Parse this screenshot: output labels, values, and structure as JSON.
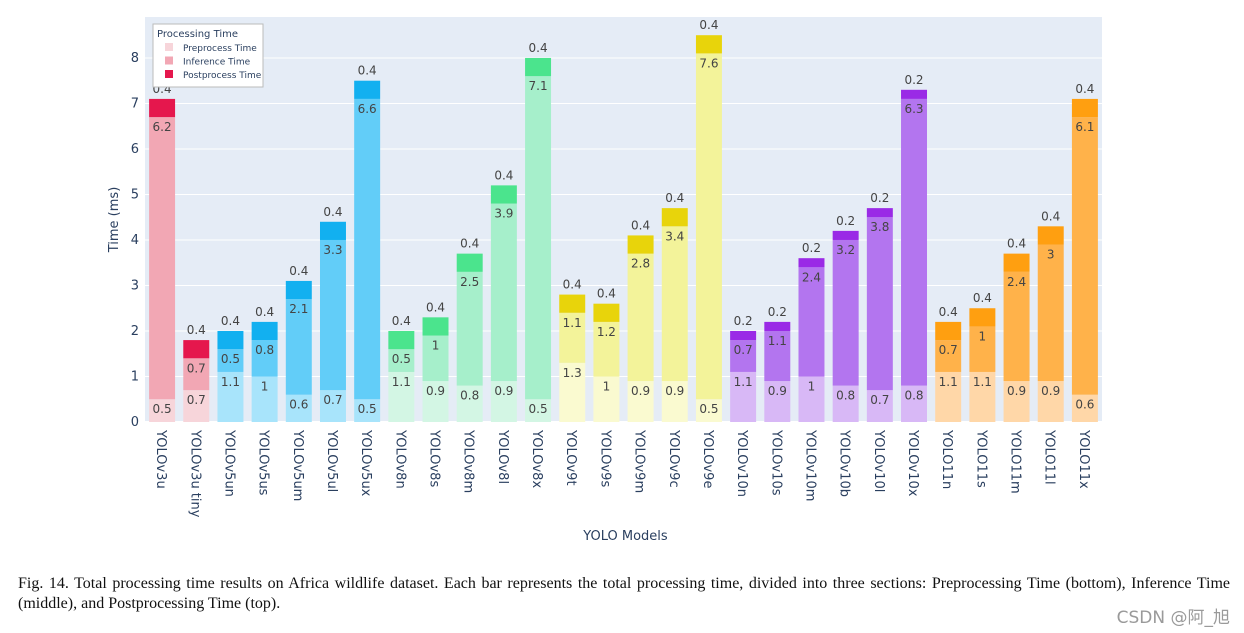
{
  "chart_data": {
    "type": "bar",
    "stacked": true,
    "xlabel": "YOLO Models",
    "ylabel": "Time (ms)",
    "ylim": [
      0,
      8.9
    ],
    "yticks": [
      0,
      1,
      2,
      3,
      4,
      5,
      6,
      7,
      8
    ],
    "legend": {
      "title": "Processing Time",
      "position": "top-left",
      "entries": [
        "Preprocess Time",
        "Inference Time",
        "Postprocess Time"
      ]
    },
    "categories": [
      "YOLOv3u",
      "YOLOv3u tiny",
      "YOLOv5un",
      "YOLOv5us",
      "YOLOv5um",
      "YOLOv5ul",
      "YOLOv5ux",
      "YOLOv8n",
      "YOLOv8s",
      "YOLOv8m",
      "YOLOv8l",
      "YOLOv8x",
      "YOLOv9t",
      "YOLOv9s",
      "YOLOv9m",
      "YOLOv9c",
      "YOLOv9e",
      "YOLOv10n",
      "YOLOv10s",
      "YOLOv10m",
      "YOLOv10b",
      "YOLOv10l",
      "YOLOv10x",
      "YOLO11n",
      "YOLO11s",
      "YOLO11m",
      "YOLO11l",
      "YOLO11x"
    ],
    "series": [
      {
        "name": "Preprocess Time",
        "values": [
          0.5,
          0.7,
          1.1,
          1,
          0.6,
          0.7,
          0.5,
          1.1,
          0.9,
          0.8,
          0.9,
          0.5,
          1.3,
          1,
          0.9,
          0.9,
          0.5,
          1.1,
          0.9,
          1,
          0.8,
          0.7,
          0.8,
          1.1,
          1.1,
          0.9,
          0.9,
          0.6
        ]
      },
      {
        "name": "Inference Time",
        "values": [
          6.2,
          0.7,
          0.5,
          0.8,
          2.1,
          3.3,
          6.6,
          0.5,
          1,
          2.5,
          3.9,
          7.1,
          1.1,
          1.2,
          2.8,
          3.4,
          7.6,
          0.7,
          1.1,
          2.4,
          3.2,
          3.8,
          6.3,
          0.7,
          1,
          2.4,
          3,
          6.1
        ]
      },
      {
        "name": "Postprocess Time",
        "values": [
          0.4,
          0.4,
          0.4,
          0.4,
          0.4,
          0.4,
          0.4,
          0.4,
          0.4,
          0.4,
          0.4,
          0.4,
          0.4,
          0.4,
          0.4,
          0.4,
          0.4,
          0.2,
          0.2,
          0.2,
          0.2,
          0.2,
          0.2,
          0.4,
          0.4,
          0.4,
          0.4,
          0.4
        ]
      }
    ],
    "colors": {
      "v3": [
        "#f7d5da",
        "#f2a7b4",
        "#e5174d"
      ],
      "v5": [
        "#a8e4fb",
        "#62cdf8",
        "#12b0f0"
      ],
      "v8": [
        "#d3f6e4",
        "#a6efcb",
        "#4be48d"
      ],
      "v9": [
        "#fafad0",
        "#f3f39a",
        "#e8d40b"
      ],
      "v10": [
        "#d8b8f6",
        "#b375ef",
        "#9a2ae6"
      ],
      "v11": [
        "#ffd7a8",
        "#ffb24a",
        "#ff9f10"
      ]
    },
    "color_groups": [
      "v3",
      "v3",
      "v5",
      "v5",
      "v5",
      "v5",
      "v5",
      "v8",
      "v8",
      "v8",
      "v8",
      "v8",
      "v9",
      "v9",
      "v9",
      "v9",
      "v9",
      "v10",
      "v10",
      "v10",
      "v10",
      "v10",
      "v10",
      "v11",
      "v11",
      "v11",
      "v11",
      "v11"
    ],
    "legend_colors": [
      "#f7d5da",
      "#f2a7b4",
      "#e5174d"
    ],
    "plot_background": "#e5ecf6"
  },
  "caption": "Fig. 14.  Total processing time results on Africa wildlife dataset. Each bar represents the total processing time, divided into three sections: Preprocessing Time (bottom), Inference Time (middle), and Postprocessing Time (top).",
  "watermark": "CSDN @阿_旭"
}
